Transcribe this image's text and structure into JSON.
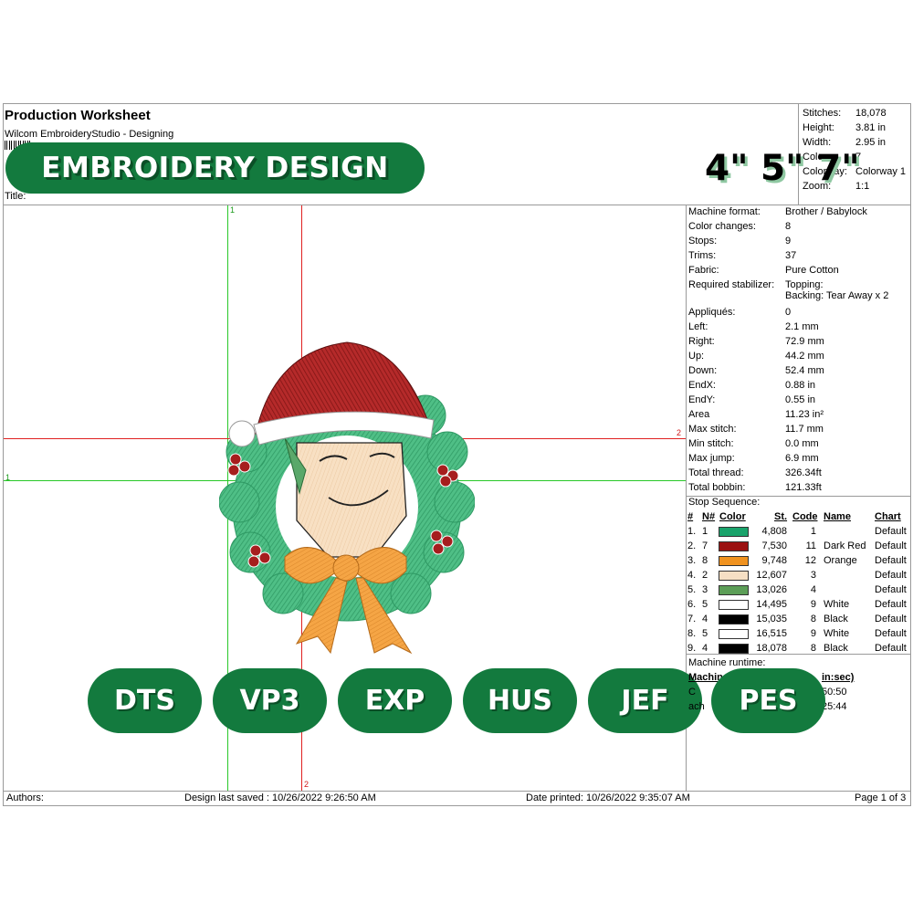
{
  "header": {
    "title": "Production Worksheet",
    "subtitle": "Wilcom EmbroideryStudio - Designing",
    "title_field_label": "Title:",
    "banner_text": "EMBROIDERY DESIGN",
    "sizes_text": "4\" 5\" 7\""
  },
  "summary": {
    "stitches_label": "Stitches:",
    "stitches_value": "18,078",
    "height_label": "Height:",
    "height_value": "3.81 in",
    "width_label": "Width:",
    "width_value": "2.95 in",
    "colors_label": "Colors:",
    "colors_value": "7",
    "colorway_label": "Colorway:",
    "colorway_value": "Colorway 1",
    "zoom_label": "Zoom:",
    "zoom_value": "1:1"
  },
  "details": [
    {
      "label": "Machine format:",
      "value": "Brother / Babylock"
    },
    {
      "label": "Color changes:",
      "value": "8"
    },
    {
      "label": "Stops:",
      "value": "9"
    },
    {
      "label": "Trims:",
      "value": "37"
    },
    {
      "label": "Fabric:",
      "value": "Pure Cotton"
    },
    {
      "label": "Required stabilizer:",
      "value": "Topping:"
    },
    {
      "label": "",
      "value": "Backing: Tear Away x 2"
    },
    {
      "label": "Appliqués:",
      "value": "0"
    },
    {
      "label": "Left:",
      "value": "2.1 mm"
    },
    {
      "label": "Right:",
      "value": "72.9 mm"
    },
    {
      "label": "Up:",
      "value": "44.2 mm"
    },
    {
      "label": "Down:",
      "value": "52.4 mm"
    },
    {
      "label": "EndX:",
      "value": "0.88 in"
    },
    {
      "label": "EndY:",
      "value": "0.55 in"
    },
    {
      "label": "Area",
      "value": "11.23 in²"
    },
    {
      "label": "Max stitch:",
      "value": "11.7 mm"
    },
    {
      "label": "Min stitch:",
      "value": "0.0 mm"
    },
    {
      "label": "Max jump:",
      "value": "6.9 mm"
    },
    {
      "label": "Total thread:",
      "value": "326.34ft"
    },
    {
      "label": "Total bobbin:",
      "value": "121.33ft"
    }
  ],
  "stop_sequence": {
    "title": "Stop Sequence:",
    "headers": {
      "num": "#",
      "n": "N#",
      "color": "Color",
      "st": "St.",
      "code": "Code",
      "name": "Name",
      "chart": "Chart"
    },
    "rows": [
      {
        "num": "1.",
        "n": "1",
        "hex": "#1aa36b",
        "st": "4,808",
        "code": "1",
        "name": "",
        "chart": "Default"
      },
      {
        "num": "2.",
        "n": "7",
        "hex": "#9b1111",
        "st": "7,530",
        "code": "11",
        "name": "Dark Red",
        "chart": "Default"
      },
      {
        "num": "3.",
        "n": "8",
        "hex": "#f0921f",
        "st": "9,748",
        "code": "12",
        "name": "Orange",
        "chart": "Default"
      },
      {
        "num": "4.",
        "n": "2",
        "hex": "#f6dfc4",
        "st": "12,607",
        "code": "3",
        "name": "",
        "chart": "Default"
      },
      {
        "num": "5.",
        "n": "3",
        "hex": "#5c9e57",
        "st": "13,026",
        "code": "4",
        "name": "",
        "chart": "Default"
      },
      {
        "num": "6.",
        "n": "5",
        "hex": "#ffffff",
        "st": "14,495",
        "code": "9",
        "name": "White",
        "chart": "Default"
      },
      {
        "num": "7.",
        "n": "4",
        "hex": "#000000",
        "st": "15,035",
        "code": "8",
        "name": "Black",
        "chart": "Default"
      },
      {
        "num": "8.",
        "n": "5",
        "hex": "#ffffff",
        "st": "16,515",
        "code": "9",
        "name": "White",
        "chart": "Default"
      },
      {
        "num": "9.",
        "n": "4",
        "hex": "#000000",
        "st": "18,078",
        "code": "8",
        "name": "Black",
        "chart": "Default"
      }
    ]
  },
  "runtime": {
    "label": "Machine runtime:",
    "col_head_left": "Machin",
    "col_head_right": "in:sec)",
    "row1_left": "C",
    "row1_right": "50:50",
    "row2_left": "ach",
    "row2_right": "25:44"
  },
  "formats": [
    "DTS",
    "VP3",
    "EXP",
    "HUS",
    "JEF",
    "PES"
  ],
  "guides": {
    "v1": "1",
    "h1": "1",
    "h2": "2",
    "v2": "2"
  },
  "footer": {
    "authors": "Authors:",
    "saved": "Design last saved : 10/26/2022 9:26:50 AM",
    "printed": "Date printed: 10/26/2022 9:35:07 AM",
    "page": "Page 1 of 3"
  },
  "colors": {
    "brand_green": "#137a3e",
    "guide_green": "#28c828",
    "guide_red": "#e02020"
  }
}
